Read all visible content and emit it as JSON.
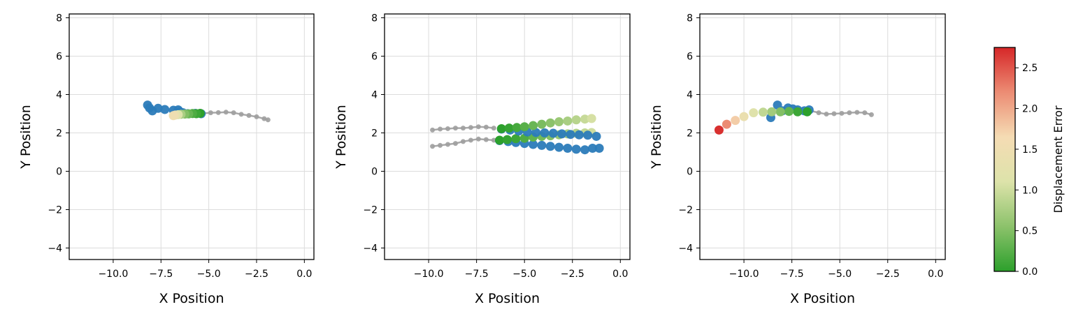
{
  "colors": {
    "history": "#9e9e9e",
    "ground_truth": "#2b7bb9",
    "grid": "#dcdcdc",
    "colormap": [
      "#2ca02c",
      "#8cc26b",
      "#dde3aa",
      "#f5dcb4",
      "#ec8c74",
      "#d62728"
    ]
  },
  "colorbar": {
    "label": "Displacement Error",
    "vmin": 0.0,
    "vmax": 2.75,
    "ticks": [
      0.0,
      0.5,
      1.0,
      1.5,
      2.0,
      2.5
    ],
    "tick_labels": [
      "0.0",
      "0.5",
      "1.0",
      "1.5",
      "2.0",
      "2.5"
    ]
  },
  "chart_data": [
    {
      "type": "scatter",
      "xlabel": "X Position",
      "ylabel": "Y Position",
      "xlim": [
        -12.3,
        0.5
      ],
      "ylim": [
        -4.6,
        8.2
      ],
      "xticks": [
        -10.0,
        -7.5,
        -5.0,
        -2.5,
        0.0
      ],
      "xtick_labels": [
        "−10.0",
        "−7.5",
        "−5.0",
        "−2.5",
        "0.0"
      ],
      "yticks": [
        -4,
        -2,
        0,
        2,
        4,
        6,
        8
      ],
      "ytick_labels": [
        "−4",
        "−2",
        "0",
        "2",
        "4",
        "6",
        "8"
      ],
      "grid": true,
      "agents": [
        {
          "history": {
            "x": [
              -5.3,
              -4.9,
              -4.5,
              -4.1,
              -3.7,
              -3.3,
              -2.9,
              -2.5,
              -2.1,
              -1.9
            ],
            "y": [
              3.02,
              3.05,
              3.06,
              3.08,
              3.05,
              2.97,
              2.91,
              2.84,
              2.74,
              2.68
            ]
          },
          "ground_truth": {
            "x": [
              -8.2,
              -8.1,
              -7.95,
              -7.65,
              -7.3,
              -6.85,
              -6.6,
              -6.5,
              -6.35,
              -6.1,
              -5.7,
              -5.4
            ],
            "y": [
              3.45,
              3.3,
              3.15,
              3.28,
              3.22,
              3.18,
              3.2,
              3.1,
              3.05,
              3.0,
              3.02,
              3.0
            ]
          },
          "prediction": {
            "x": [
              -5.45,
              -5.65,
              -5.85,
              -6.05,
              -6.25,
              -6.45,
              -6.6,
              -6.75,
              -6.85
            ],
            "y": [
              3.02,
              3.0,
              3.01,
              2.99,
              2.98,
              2.97,
              2.95,
              2.93,
              2.9
            ],
            "error": [
              0.0,
              0.1,
              0.2,
              0.35,
              0.5,
              0.75,
              1.1,
              1.35,
              1.5
            ]
          }
        }
      ]
    },
    {
      "type": "scatter",
      "xlabel": "X Position",
      "ylabel": "Y Position",
      "xlim": [
        -12.3,
        0.5
      ],
      "ylim": [
        -4.6,
        8.2
      ],
      "xticks": [
        -10.0,
        -7.5,
        -5.0,
        -2.5,
        0.0
      ],
      "xtick_labels": [
        "−10.0",
        "−7.5",
        "−5.0",
        "−2.5",
        "0.0"
      ],
      "yticks": [
        -4,
        -2,
        0,
        2,
        4,
        6,
        8
      ],
      "ytick_labels": [
        "−4",
        "−2",
        "0",
        "2",
        "4",
        "6",
        "8"
      ],
      "grid": true,
      "agents": [
        {
          "history": {
            "x": [
              -9.8,
              -9.4,
              -9.0,
              -8.6,
              -8.2,
              -7.8,
              -7.4,
              -7.0,
              -6.6
            ],
            "y": [
              1.3,
              1.35,
              1.4,
              1.45,
              1.55,
              1.62,
              1.68,
              1.65,
              1.62
            ]
          },
          "ground_truth": {
            "x": [
              -6.3,
              -5.85,
              -5.45,
              -5.0,
              -4.55,
              -4.1,
              -3.65,
              -3.2,
              -2.75,
              -2.3,
              -1.85,
              -1.45,
              -1.1
            ],
            "y": [
              1.6,
              1.55,
              1.5,
              1.45,
              1.4,
              1.35,
              1.3,
              1.25,
              1.2,
              1.15,
              1.12,
              1.2,
              1.2
            ]
          },
          "prediction": {
            "x": [
              -6.3,
              -5.9,
              -5.45,
              -5.0,
              -4.55,
              -4.1,
              -3.65,
              -3.2,
              -2.75,
              -2.3,
              -1.85,
              -1.5
            ],
            "y": [
              1.62,
              1.65,
              1.7,
              1.72,
              1.78,
              1.82,
              1.85,
              1.9,
              1.95,
              1.98,
              2.0,
              2.02
            ],
            "error": [
              0.0,
              0.05,
              0.1,
              0.2,
              0.3,
              0.4,
              0.5,
              0.6,
              0.7,
              0.8,
              0.9,
              1.0
            ]
          }
        },
        {
          "history": {
            "x": [
              -9.8,
              -9.4,
              -9.0,
              -8.6,
              -8.2,
              -7.8,
              -7.4,
              -7.0,
              -6.6
            ],
            "y": [
              2.15,
              2.2,
              2.22,
              2.25,
              2.25,
              2.28,
              2.32,
              2.3,
              2.25
            ]
          },
          "ground_truth": {
            "x": [
              -6.2,
              -5.75,
              -5.3,
              -4.85,
              -4.4,
              -3.95,
              -3.5,
              -3.05,
              -2.6,
              -2.15,
              -1.7,
              -1.25
            ],
            "y": [
              2.2,
              2.15,
              2.1,
              2.05,
              2.02,
              2.0,
              1.98,
              1.95,
              1.92,
              1.9,
              1.88,
              1.82
            ]
          },
          "prediction": {
            "x": [
              -6.2,
              -5.8,
              -5.4,
              -5.0,
              -4.55,
              -4.1,
              -3.65,
              -3.2,
              -2.75,
              -2.3,
              -1.85,
              -1.5
            ],
            "y": [
              2.22,
              2.25,
              2.28,
              2.32,
              2.38,
              2.45,
              2.52,
              2.58,
              2.62,
              2.68,
              2.72,
              2.75
            ],
            "error": [
              0.0,
              0.05,
              0.15,
              0.25,
              0.35,
              0.45,
              0.55,
              0.65,
              0.75,
              0.85,
              0.95,
              1.05
            ]
          }
        }
      ]
    },
    {
      "type": "scatter",
      "xlabel": "X Position",
      "ylabel": "Y Position",
      "xlim": [
        -12.3,
        0.5
      ],
      "ylim": [
        -4.6,
        8.2
      ],
      "xticks": [
        -10.0,
        -7.5,
        -5.0,
        -2.5,
        0.0
      ],
      "xtick_labels": [
        "−10.0",
        "−7.5",
        "−5.0",
        "−2.5",
        "0.0"
      ],
      "yticks": [
        -4,
        -2,
        0,
        2,
        4,
        6,
        8
      ],
      "ytick_labels": [
        "−4",
        "−2",
        "0",
        "2",
        "4",
        "6",
        "8"
      ],
      "grid": true,
      "agents": [
        {
          "history": {
            "x": [
              -6.5,
              -6.1,
              -5.7,
              -5.3,
              -4.9,
              -4.5,
              -4.1,
              -3.7,
              -3.35
            ],
            "y": [
              3.15,
              3.05,
              2.98,
              3.0,
              3.02,
              3.05,
              3.07,
              3.05,
              2.95
            ]
          },
          "ground_truth": {
            "x": [
              -8.6,
              -8.25,
              -8.0,
              -7.7,
              -7.45,
              -7.2,
              -6.85,
              -6.6
            ],
            "y": [
              2.8,
              3.45,
              3.15,
              3.3,
              3.25,
              3.2,
              3.15,
              3.2
            ]
          },
          "prediction": {
            "x": [
              -6.7,
              -7.2,
              -7.65,
              -8.1,
              -8.55,
              -9.0,
              -9.5,
              -10.0,
              -10.45,
              -10.9,
              -11.3
            ],
            "y": [
              3.1,
              3.1,
              3.12,
              3.1,
              3.1,
              3.08,
              3.05,
              2.85,
              2.65,
              2.45,
              2.15
            ],
            "error": [
              0.0,
              0.1,
              0.3,
              0.5,
              0.7,
              0.9,
              1.15,
              1.4,
              1.75,
              2.2,
              2.7
            ]
          }
        }
      ]
    }
  ]
}
